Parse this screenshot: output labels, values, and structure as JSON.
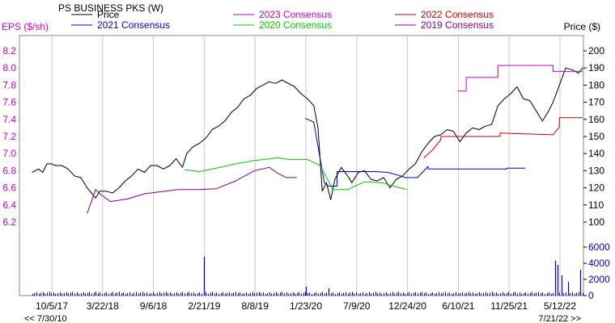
{
  "chart_data": {
    "type": "line",
    "title": "PS BUSINESS PKS (W)",
    "left_axis_label": "EPS ($/sh)",
    "right_axis_label": "Price ($)",
    "range_start_label": "<< 7/30/10",
    "range_end_label": "7/21/22 >>",
    "x_ticks": [
      "10/5/17",
      "3/22/18",
      "9/6/18",
      "2/21/19",
      "8/8/19",
      "1/23/20",
      "7/9/20",
      "12/24/20",
      "6/10/21",
      "11/25/21",
      "5/12/22"
    ],
    "eps_axis": {
      "ticks": [
        "8.2",
        "8.0",
        "7.8",
        "7.6",
        "7.4",
        "7.2",
        "7.0",
        "6.8",
        "6.6",
        "6.4",
        "6.2"
      ],
      "color": "#cc00cc"
    },
    "price_axis": {
      "ticks": [
        "200",
        "190",
        "180",
        "170",
        "160",
        "150",
        "140",
        "130",
        "120",
        "110",
        "100"
      ]
    },
    "volume_axis": {
      "ticks": [
        "6000",
        "4000",
        "2000",
        "0"
      ],
      "color": "#0000cc"
    },
    "grid": "vertical",
    "series": [
      {
        "name": "Price",
        "color": "#000000",
        "x": [
          "2017-08-01",
          "2017-08-22",
          "2017-09-05",
          "2017-09-19",
          "2017-10-03",
          "2017-10-17",
          "2017-11-07",
          "2017-11-28",
          "2017-12-19",
          "2018-01-09",
          "2018-01-30",
          "2018-02-13",
          "2018-02-27",
          "2018-03-13",
          "2018-04-03",
          "2018-04-24",
          "2018-05-15",
          "2018-06-05",
          "2018-06-26",
          "2018-07-17",
          "2018-08-07",
          "2018-08-28",
          "2018-09-18",
          "2018-10-09",
          "2018-10-30",
          "2018-11-20",
          "2018-12-11",
          "2018-12-25",
          "2019-01-15",
          "2019-02-05",
          "2019-02-26",
          "2019-03-19",
          "2019-04-09",
          "2019-04-30",
          "2019-05-21",
          "2019-06-11",
          "2019-07-02",
          "2019-07-23",
          "2019-08-13",
          "2019-09-03",
          "2019-09-24",
          "2019-10-15",
          "2019-11-05",
          "2019-11-26",
          "2019-12-17",
          "2020-01-07",
          "2020-01-28",
          "2020-02-18",
          "2020-03-03",
          "2020-03-17",
          "2020-03-31",
          "2020-04-14",
          "2020-04-28",
          "2020-05-19",
          "2020-06-09",
          "2020-06-23",
          "2020-07-14",
          "2020-08-04",
          "2020-08-25",
          "2020-09-15",
          "2020-10-06",
          "2020-10-27",
          "2020-11-17",
          "2020-12-08",
          "2020-12-29",
          "2021-01-19",
          "2021-02-09",
          "2021-03-02",
          "2021-03-23",
          "2021-04-13",
          "2021-05-04",
          "2021-05-25",
          "2021-06-15",
          "2021-07-06",
          "2021-07-27",
          "2021-08-17",
          "2021-09-07",
          "2021-09-28",
          "2021-10-19",
          "2021-11-09",
          "2021-11-30",
          "2021-12-21",
          "2022-01-11",
          "2022-02-01",
          "2022-02-22",
          "2022-03-15",
          "2022-04-05",
          "2022-04-19",
          "2022-05-10",
          "2022-05-31",
          "2022-06-21",
          "2022-07-12",
          "2022-07-26"
        ],
        "values": [
          129,
          131,
          129,
          134,
          134,
          133,
          133,
          131,
          127,
          126,
          120,
          117,
          114,
          118,
          118,
          117,
          120,
          124,
          127,
          131,
          129,
          133,
          133,
          131,
          133,
          137,
          132,
          140,
          144,
          146,
          149,
          154,
          156,
          159,
          164,
          167,
          172,
          174,
          178,
          180,
          182,
          181,
          183,
          181,
          179,
          175,
          172,
          168,
          155,
          118,
          123,
          113,
          125,
          132,
          127,
          123,
          129,
          130,
          125,
          124,
          126,
          120,
          125,
          127,
          131,
          134,
          141,
          146,
          150,
          151,
          154,
          153,
          147,
          152,
          155,
          154,
          156,
          157,
          168,
          172,
          175,
          179,
          172,
          171,
          165,
          159,
          165,
          170,
          180,
          190,
          189,
          187,
          190
        ]
      },
      {
        "name": "2023 Consensus",
        "color": "#cc00cc",
        "x": [
          "2021-06-08",
          "2021-07-06",
          "2021-07-06",
          "2021-10-19",
          "2021-10-19",
          "2022-04-19",
          "2022-04-19",
          "2022-07-26"
        ],
        "values": [
          7.73,
          7.73,
          7.89,
          7.89,
          8.03,
          8.03,
          7.96,
          7.96
        ]
      },
      {
        "name": "2022 Consensus",
        "color": "#cc0000",
        "x": [
          "2021-02-16",
          "2021-03-16",
          "2021-04-13",
          "2021-04-13",
          "2021-10-26",
          "2021-10-26",
          "2022-04-19",
          "2022-05-10",
          "2022-05-10",
          "2022-07-26"
        ],
        "values": [
          6.95,
          7.04,
          7.16,
          7.2,
          7.2,
          7.24,
          7.22,
          7.31,
          7.42,
          7.42
        ]
      },
      {
        "name": "2021 Consensus",
        "color": "#0000cc",
        "x": [
          "2020-01-21",
          "2020-02-18",
          "2020-02-18",
          "2020-03-24",
          "2020-04-07",
          "2020-05-05",
          "2020-05-05",
          "2020-09-08",
          "2020-10-20",
          "2020-12-01",
          "2020-12-15",
          "2021-01-26",
          "2021-03-02",
          "2021-03-02",
          "2021-11-16",
          "2021-11-16",
          "2022-01-18"
        ],
        "values": [
          7.41,
          7.37,
          7.37,
          6.66,
          6.62,
          6.62,
          6.79,
          6.79,
          6.78,
          6.74,
          6.72,
          6.72,
          6.85,
          6.82,
          6.82,
          6.83,
          6.83
        ]
      },
      {
        "name": "2020 Consensus",
        "color": "#00cc00",
        "x": [
          "2018-12-18",
          "2019-02-05",
          "2019-04-02",
          "2019-06-04",
          "2019-08-06",
          "2019-10-22",
          "2019-12-03",
          "2020-01-28",
          "2020-03-10",
          "2020-04-21",
          "2020-06-09",
          "2020-08-04",
          "2020-09-29",
          "2020-11-17",
          "2020-12-22"
        ],
        "values": [
          6.81,
          6.79,
          6.83,
          6.88,
          6.92,
          6.95,
          6.93,
          6.93,
          6.86,
          6.58,
          6.58,
          6.67,
          6.66,
          6.61,
          6.58
        ]
      },
      {
        "name": "2019 Consensus",
        "color": "#880088",
        "x": [
          "2018-01-30",
          "2018-02-27",
          "2018-03-13",
          "2018-04-17",
          "2018-06-12",
          "2018-08-07",
          "2018-11-27",
          "2019-01-29",
          "2019-04-02",
          "2019-06-04",
          "2019-08-06",
          "2019-09-24",
          "2019-10-22",
          "2019-11-19",
          "2019-12-24"
        ],
        "values": [
          6.3,
          6.58,
          6.53,
          6.44,
          6.47,
          6.53,
          6.58,
          6.58,
          6.59,
          6.68,
          6.8,
          6.84,
          6.77,
          6.72,
          6.72
        ]
      }
    ],
    "volume": {
      "color": "#0000cc",
      "x": [
        "2019-02-21",
        "2020-01-23",
        "2020-04-07",
        "2022-04-26",
        "2022-05-03",
        "2022-05-17",
        "2022-06-07",
        "2022-07-19"
      ],
      "values": [
        4800,
        1100,
        900,
        4300,
        3800,
        2500,
        1700,
        3200
      ],
      "baseline": 330
    }
  }
}
